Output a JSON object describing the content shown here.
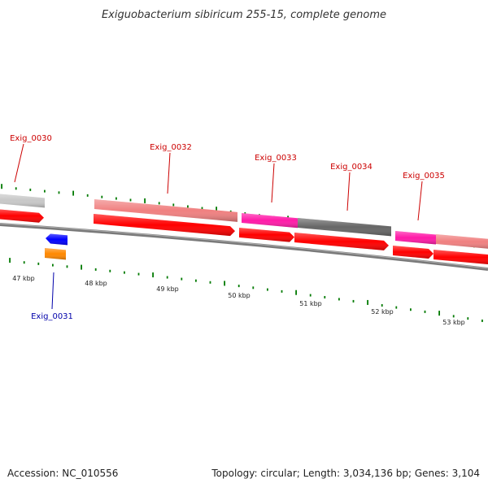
{
  "title": "Exiguobacterium sibiricum 255-15, complete genome",
  "footer": {
    "accession": "Accession: NC_010556",
    "summary": "Topology: circular; Length: 3,034,136 bp; Genes: 3,104"
  },
  "colors": {
    "cds_red": "#ff0000",
    "cds_pink": "#f08080",
    "cds_magenta": "#ff1aa8",
    "cds_darkgray": "#666666",
    "cds_lightgray": "#c8c8c8",
    "cds_blue": "#0000ff",
    "cds_orange": "#ff8800",
    "tick_green": "#007a00",
    "backbone_gray": "#7a7a7a",
    "forward_label": "#cc0000",
    "reverse_label": "#0000aa"
  },
  "gene_labels": [
    {
      "text": "Exig_0030",
      "strand": "forward"
    },
    {
      "text": "Exig_0032",
      "strand": "forward"
    },
    {
      "text": "Exig_0033",
      "strand": "forward"
    },
    {
      "text": "Exig_0034",
      "strand": "forward"
    },
    {
      "text": "Exig_0035",
      "strand": "forward"
    },
    {
      "text": "Exig_0031",
      "strand": "reverse"
    }
  ],
  "scale_labels": [
    "47 kbp",
    "48 kbp",
    "49 kbp",
    "50 kbp",
    "51 kbp",
    "52 kbp",
    "53 kbp"
  ]
}
